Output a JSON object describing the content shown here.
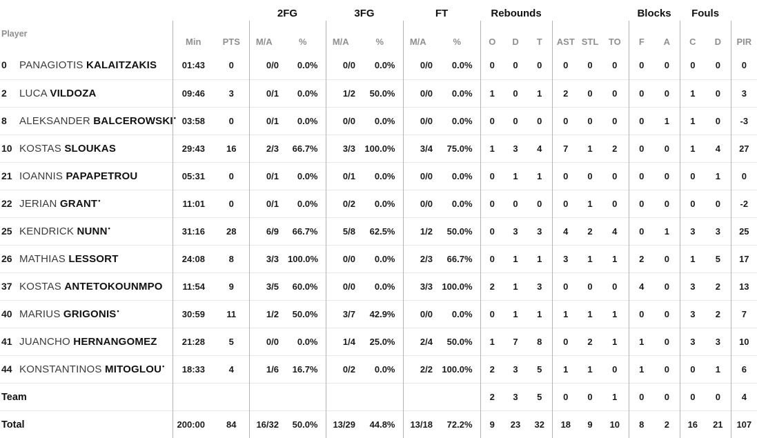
{
  "colors": {
    "text_primary": "#1a1a1a",
    "text_muted": "#8f8f8f",
    "divider": "#b3b3b3",
    "row_separator": "#e7e7e7"
  },
  "starter_mark": "•",
  "header": {
    "player": "Player",
    "groups": {
      "fg2": "2FG",
      "fg3": "3FG",
      "ft": "FT",
      "rebounds": "Rebounds",
      "blocks": "Blocks",
      "fouls": "Fouls"
    },
    "cols": {
      "min": "Min",
      "pts": "PTS",
      "fg2_ma": "M/A",
      "fg2_pct": "%",
      "fg3_ma": "M/A",
      "fg3_pct": "%",
      "ft_ma": "M/A",
      "ft_pct": "%",
      "reb_o": "O",
      "reb_d": "D",
      "reb_t": "T",
      "ast": "AST",
      "stl": "STL",
      "to": "TO",
      "blk_f": "F",
      "blk_a": "A",
      "foul_c": "C",
      "foul_d": "D",
      "pir": "PIR"
    }
  },
  "rows": [
    {
      "number": "0",
      "first": "PANAGIOTIS",
      "last": "KALAITZAKIS",
      "starter": false,
      "min": "01:43",
      "pts": "0",
      "fg2_ma": "0/0",
      "fg2_pct": "0.0%",
      "fg3_ma": "0/0",
      "fg3_pct": "0.0%",
      "ft_ma": "0/0",
      "ft_pct": "0.0%",
      "reb_o": "0",
      "reb_d": "0",
      "reb_t": "0",
      "ast": "0",
      "stl": "0",
      "to": "0",
      "blk_f": "0",
      "blk_a": "0",
      "foul_c": "0",
      "foul_d": "0",
      "pir": "0"
    },
    {
      "number": "2",
      "first": "LUCA",
      "last": "VILDOZA",
      "starter": false,
      "min": "09:46",
      "pts": "3",
      "fg2_ma": "0/1",
      "fg2_pct": "0.0%",
      "fg3_ma": "1/2",
      "fg3_pct": "50.0%",
      "ft_ma": "0/0",
      "ft_pct": "0.0%",
      "reb_o": "1",
      "reb_d": "0",
      "reb_t": "1",
      "ast": "2",
      "stl": "0",
      "to": "0",
      "blk_f": "0",
      "blk_a": "0",
      "foul_c": "1",
      "foul_d": "0",
      "pir": "3"
    },
    {
      "number": "8",
      "first": "ALEKSANDER",
      "last": "BALCEROWSKI",
      "starter": true,
      "min": "03:58",
      "pts": "0",
      "fg2_ma": "0/1",
      "fg2_pct": "0.0%",
      "fg3_ma": "0/0",
      "fg3_pct": "0.0%",
      "ft_ma": "0/0",
      "ft_pct": "0.0%",
      "reb_o": "0",
      "reb_d": "0",
      "reb_t": "0",
      "ast": "0",
      "stl": "0",
      "to": "0",
      "blk_f": "0",
      "blk_a": "1",
      "foul_c": "1",
      "foul_d": "0",
      "pir": "-3"
    },
    {
      "number": "10",
      "first": "KOSTAS",
      "last": "SLOUKAS",
      "starter": false,
      "min": "29:43",
      "pts": "16",
      "fg2_ma": "2/3",
      "fg2_pct": "66.7%",
      "fg3_ma": "3/3",
      "fg3_pct": "100.0%",
      "ft_ma": "3/4",
      "ft_pct": "75.0%",
      "reb_o": "1",
      "reb_d": "3",
      "reb_t": "4",
      "ast": "7",
      "stl": "1",
      "to": "2",
      "blk_f": "0",
      "blk_a": "0",
      "foul_c": "1",
      "foul_d": "4",
      "pir": "27"
    },
    {
      "number": "21",
      "first": "IOANNIS",
      "last": "PAPAPETROU",
      "starter": false,
      "min": "05:31",
      "pts": "0",
      "fg2_ma": "0/1",
      "fg2_pct": "0.0%",
      "fg3_ma": "0/1",
      "fg3_pct": "0.0%",
      "ft_ma": "0/0",
      "ft_pct": "0.0%",
      "reb_o": "0",
      "reb_d": "1",
      "reb_t": "1",
      "ast": "0",
      "stl": "0",
      "to": "0",
      "blk_f": "0",
      "blk_a": "0",
      "foul_c": "0",
      "foul_d": "1",
      "pir": "0"
    },
    {
      "number": "22",
      "first": "JERIAN",
      "last": "GRANT",
      "starter": true,
      "min": "11:01",
      "pts": "0",
      "fg2_ma": "0/1",
      "fg2_pct": "0.0%",
      "fg3_ma": "0/2",
      "fg3_pct": "0.0%",
      "ft_ma": "0/0",
      "ft_pct": "0.0%",
      "reb_o": "0",
      "reb_d": "0",
      "reb_t": "0",
      "ast": "0",
      "stl": "1",
      "to": "0",
      "blk_f": "0",
      "blk_a": "0",
      "foul_c": "0",
      "foul_d": "0",
      "pir": "-2"
    },
    {
      "number": "25",
      "first": "KENDRICK",
      "last": "NUNN",
      "starter": true,
      "min": "31:16",
      "pts": "28",
      "fg2_ma": "6/9",
      "fg2_pct": "66.7%",
      "fg3_ma": "5/8",
      "fg3_pct": "62.5%",
      "ft_ma": "1/2",
      "ft_pct": "50.0%",
      "reb_o": "0",
      "reb_d": "3",
      "reb_t": "3",
      "ast": "4",
      "stl": "2",
      "to": "4",
      "blk_f": "0",
      "blk_a": "1",
      "foul_c": "3",
      "foul_d": "3",
      "pir": "25"
    },
    {
      "number": "26",
      "first": "MATHIAS",
      "last": "LESSORT",
      "starter": false,
      "min": "24:08",
      "pts": "8",
      "fg2_ma": "3/3",
      "fg2_pct": "100.0%",
      "fg3_ma": "0/0",
      "fg3_pct": "0.0%",
      "ft_ma": "2/3",
      "ft_pct": "66.7%",
      "reb_o": "0",
      "reb_d": "1",
      "reb_t": "1",
      "ast": "3",
      "stl": "1",
      "to": "1",
      "blk_f": "2",
      "blk_a": "0",
      "foul_c": "1",
      "foul_d": "5",
      "pir": "17"
    },
    {
      "number": "37",
      "first": "KOSTAS",
      "last": "ANTETOKOUNMPO",
      "starter": false,
      "min": "11:54",
      "pts": "9",
      "fg2_ma": "3/5",
      "fg2_pct": "60.0%",
      "fg3_ma": "0/0",
      "fg3_pct": "0.0%",
      "ft_ma": "3/3",
      "ft_pct": "100.0%",
      "reb_o": "2",
      "reb_d": "1",
      "reb_t": "3",
      "ast": "0",
      "stl": "0",
      "to": "0",
      "blk_f": "4",
      "blk_a": "0",
      "foul_c": "3",
      "foul_d": "2",
      "pir": "13"
    },
    {
      "number": "40",
      "first": "MARIUS",
      "last": "GRIGONIS",
      "starter": true,
      "min": "30:59",
      "pts": "11",
      "fg2_ma": "1/2",
      "fg2_pct": "50.0%",
      "fg3_ma": "3/7",
      "fg3_pct": "42.9%",
      "ft_ma": "0/0",
      "ft_pct": "0.0%",
      "reb_o": "0",
      "reb_d": "1",
      "reb_t": "1",
      "ast": "1",
      "stl": "1",
      "to": "1",
      "blk_f": "0",
      "blk_a": "0",
      "foul_c": "3",
      "foul_d": "2",
      "pir": "7"
    },
    {
      "number": "41",
      "first": "JUANCHO",
      "last": "HERNANGOMEZ",
      "starter": false,
      "min": "21:28",
      "pts": "5",
      "fg2_ma": "0/0",
      "fg2_pct": "0.0%",
      "fg3_ma": "1/4",
      "fg3_pct": "25.0%",
      "ft_ma": "2/4",
      "ft_pct": "50.0%",
      "reb_o": "1",
      "reb_d": "7",
      "reb_t": "8",
      "ast": "0",
      "stl": "2",
      "to": "1",
      "blk_f": "1",
      "blk_a": "0",
      "foul_c": "3",
      "foul_d": "3",
      "pir": "10"
    },
    {
      "number": "44",
      "first": "KONSTANTINOS",
      "last": "MITOGLOU",
      "starter": true,
      "min": "18:33",
      "pts": "4",
      "fg2_ma": "1/6",
      "fg2_pct": "16.7%",
      "fg3_ma": "0/2",
      "fg3_pct": "0.0%",
      "ft_ma": "2/2",
      "ft_pct": "100.0%",
      "reb_o": "2",
      "reb_d": "3",
      "reb_t": "5",
      "ast": "1",
      "stl": "1",
      "to": "0",
      "blk_f": "1",
      "blk_a": "0",
      "foul_c": "0",
      "foul_d": "1",
      "pir": "6"
    },
    {
      "label": "Team",
      "min": "",
      "pts": "",
      "fg2_ma": "",
      "fg2_pct": "",
      "fg3_ma": "",
      "fg3_pct": "",
      "ft_ma": "",
      "ft_pct": "",
      "reb_o": "2",
      "reb_d": "3",
      "reb_t": "5",
      "ast": "0",
      "stl": "0",
      "to": "1",
      "blk_f": "0",
      "blk_a": "0",
      "foul_c": "0",
      "foul_d": "0",
      "pir": "4"
    },
    {
      "label": "Total",
      "min": "200:00",
      "pts": "84",
      "fg2_ma": "16/32",
      "fg2_pct": "50.0%",
      "fg3_ma": "13/29",
      "fg3_pct": "44.8%",
      "ft_ma": "13/18",
      "ft_pct": "72.2%",
      "reb_o": "9",
      "reb_d": "23",
      "reb_t": "32",
      "ast": "18",
      "stl": "9",
      "to": "10",
      "blk_f": "8",
      "blk_a": "2",
      "foul_c": "16",
      "foul_d": "21",
      "pir": "107"
    }
  ]
}
